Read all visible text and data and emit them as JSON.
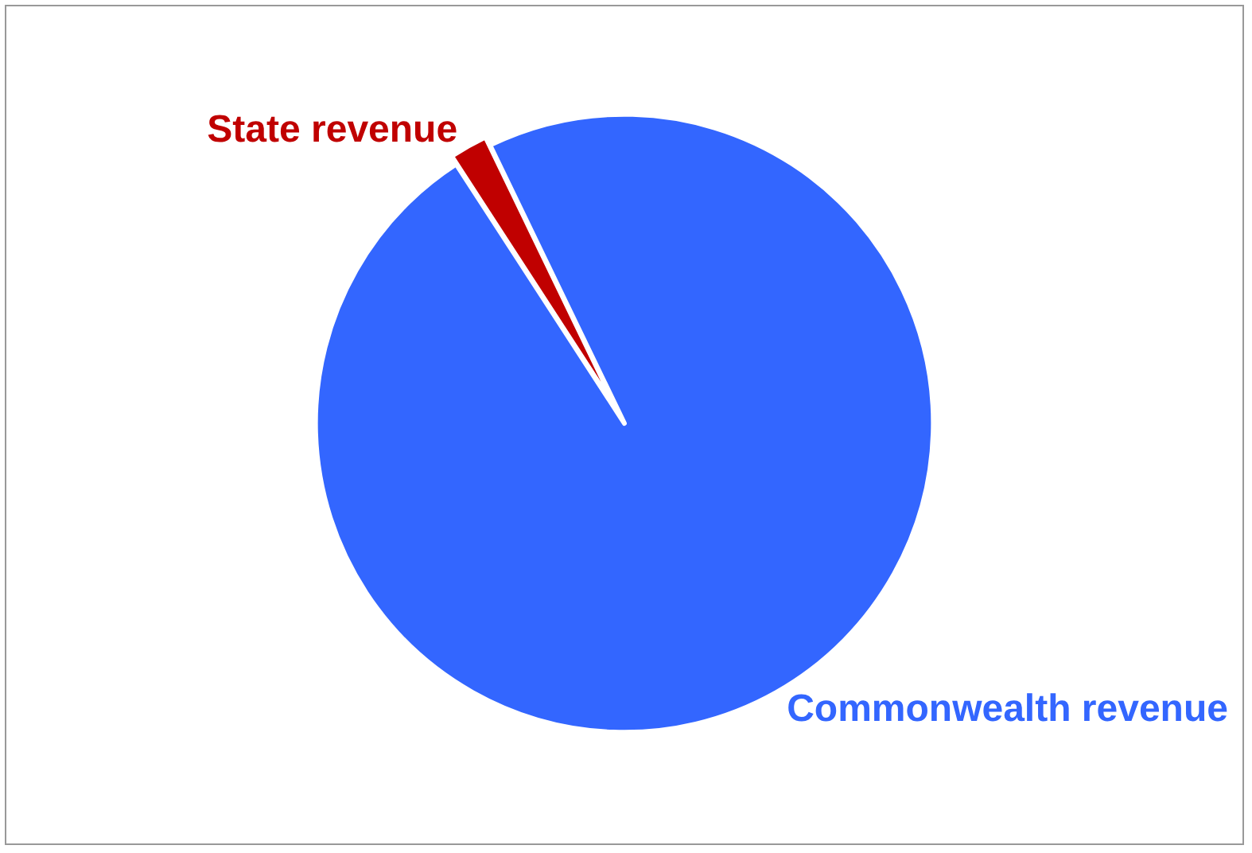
{
  "chart_data": {
    "type": "pie",
    "categories": [
      "State revenue",
      "Commonwealth revenue"
    ],
    "values": [
      2,
      98
    ],
    "colors": [
      "#c00000",
      "#3366ff"
    ],
    "legend": false
  }
}
